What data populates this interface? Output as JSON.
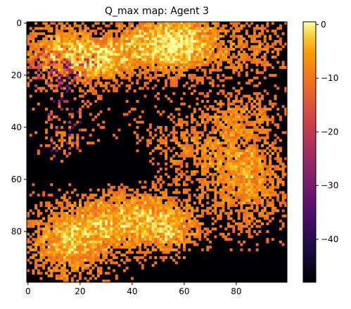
{
  "chart_data": {
    "type": "heatmap",
    "title": "Q_max map: Agent 3",
    "xlabel": "",
    "ylabel": "",
    "grid_shape": [
      100,
      100
    ],
    "xlim": [
      0,
      99
    ],
    "ylim": [
      99,
      0
    ],
    "x_ticks": [
      0,
      20,
      40,
      60,
      80
    ],
    "y_ticks": [
      0,
      20,
      40,
      60,
      80
    ],
    "colormap": "inferno",
    "colorbar": {
      "min": -48,
      "max": 0.5,
      "ticks": [
        0,
        -10,
        -20,
        -30,
        -40
      ]
    },
    "regions_approx": [
      {
        "description": "bright yellow (near 0)",
        "value": 0,
        "area": "upper center, columns 30-80, rows 0-25"
      },
      {
        "description": "orange (about -5 to -10)",
        "value": -8,
        "area": "upper left and scattered across image"
      },
      {
        "description": "red/purple (about -20 to -35)",
        "value": -28,
        "area": "left side, columns 5-20, rows 10-65"
      },
      {
        "description": "black (minimum / empty)",
        "value": -48,
        "area": "center band rows 30-60 and lower right"
      }
    ]
  }
}
